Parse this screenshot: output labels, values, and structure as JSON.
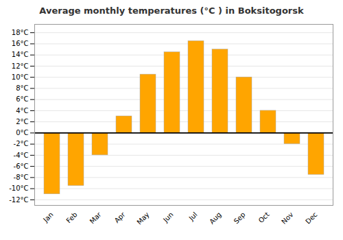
{
  "chart_data": {
    "type": "bar",
    "title": "Average monthly temperatures (°C ) in Boksitogorsk",
    "categories": [
      "Jan",
      "Feb",
      "Mar",
      "Apr",
      "May",
      "Jun",
      "Jul",
      "Aug",
      "Sep",
      "Oct",
      "Nov",
      "Dec"
    ],
    "values": [
      -11,
      -9.5,
      -4,
      3,
      10.5,
      14.5,
      16.5,
      15,
      10,
      4,
      -2,
      -7.5
    ],
    "color": "#FFA500",
    "ylim": [
      -13,
      19.5
    ],
    "yticks": [
      {
        "value": -12,
        "label": "-12°C"
      },
      {
        "value": -10,
        "label": "-10°C"
      },
      {
        "value": -8,
        "label": "-8°C"
      },
      {
        "value": -6,
        "label": "-6°C"
      },
      {
        "value": -4,
        "label": "-4°C"
      },
      {
        "value": -2,
        "label": "-2°C"
      },
      {
        "value": 0,
        "label": "0°C"
      },
      {
        "value": 2,
        "label": "2°C"
      },
      {
        "value": 4,
        "label": "4°C"
      },
      {
        "value": 6,
        "label": "6°C"
      },
      {
        "value": 8,
        "label": "8°C"
      },
      {
        "value": 10,
        "label": "10°C"
      },
      {
        "value": 12,
        "label": "12°C"
      },
      {
        "value": 14,
        "label": "14°C"
      },
      {
        "value": 16,
        "label": "16°C"
      },
      {
        "value": 18,
        "label": "18°C"
      }
    ],
    "grid": true
  }
}
